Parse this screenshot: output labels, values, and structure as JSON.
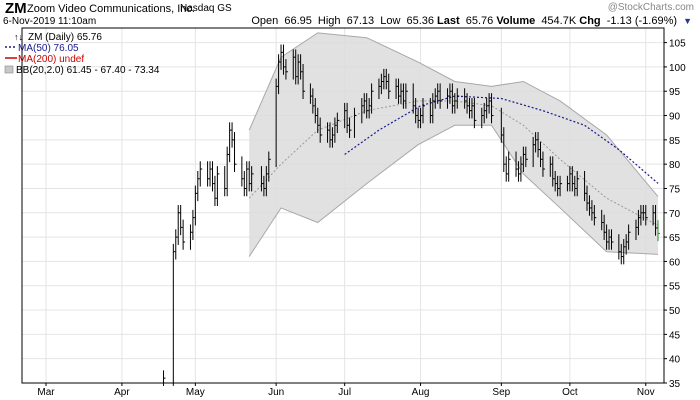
{
  "header": {
    "symbol": "ZM",
    "company": "Zoom Video Communications, Inc.",
    "exchange": "Nasdaq GS",
    "datetime": "6-Nov-2019 11:10am",
    "watermark": "@StockCharts.com"
  },
  "quote": {
    "open_label": "Open",
    "open": "66.95",
    "high_label": "High",
    "high": "67.13",
    "low_label": "Low",
    "low": "65.36",
    "last_label": "Last",
    "last": "65.76",
    "volume_label": "Volume",
    "volume": "454.7K",
    "chg_label": "Chg",
    "chg": "-1.13 (-1.69%)"
  },
  "legend": {
    "price": "ZM (Daily) 65.76",
    "ma50": "MA(50) 76.05",
    "ma200": "MA(200) undef",
    "bb": "BB(20,2.0) 61.45 - 67.40 - 73.34"
  },
  "colors": {
    "price": "#000000",
    "ma50": "#1a1a8c",
    "ma200": "#cc0000",
    "bb_fill": "#dcdcdc",
    "bb_edge": "#a8a8a8",
    "bb_mid": "#9a9a9a",
    "grid": "#e4e4e4"
  },
  "chart_data": {
    "type": "line",
    "title": "ZM (Daily)",
    "xlabel": "",
    "ylabel": "",
    "ylim": [
      35,
      108
    ],
    "yticks": [
      35,
      40,
      45,
      50,
      55,
      60,
      65,
      70,
      75,
      80,
      85,
      90,
      95,
      100,
      105
    ],
    "x_start": "2019-02-20",
    "x_end": "2019-11-06",
    "month_labels": [
      {
        "label": "Mar",
        "date": "2019-03-01"
      },
      {
        "label": "Apr",
        "date": "2019-04-01"
      },
      {
        "label": "May",
        "date": "2019-05-01"
      },
      {
        "label": "Jun",
        "date": "2019-06-03"
      },
      {
        "label": "Jul",
        "date": "2019-07-01"
      },
      {
        "label": "Aug",
        "date": "2019-08-01"
      },
      {
        "label": "Sep",
        "date": "2019-09-03"
      },
      {
        "label": "Oct",
        "date": "2019-10-01"
      },
      {
        "label": "Nov",
        "date": "2019-11-01"
      }
    ],
    "grid": true,
    "legend_position": "top-left",
    "price_series": [
      {
        "date": "2019-04-18",
        "value": 36.0
      },
      {
        "date": "2019-04-22",
        "value": 62
      },
      {
        "date": "2019-04-23",
        "value": 65
      },
      {
        "date": "2019-04-24",
        "value": 70
      },
      {
        "date": "2019-04-25",
        "value": 67
      },
      {
        "date": "2019-04-26",
        "value": 64
      },
      {
        "date": "2019-04-29",
        "value": 66
      },
      {
        "date": "2019-04-30",
        "value": 69
      },
      {
        "date": "2019-05-01",
        "value": 74
      },
      {
        "date": "2019-05-02",
        "value": 77
      },
      {
        "date": "2019-05-03",
        "value": 79
      },
      {
        "date": "2019-05-06",
        "value": 77
      },
      {
        "date": "2019-05-07",
        "value": 79
      },
      {
        "date": "2019-05-08",
        "value": 76
      },
      {
        "date": "2019-05-09",
        "value": 73
      },
      {
        "date": "2019-05-10",
        "value": 78
      },
      {
        "date": "2019-05-13",
        "value": 75
      },
      {
        "date": "2019-05-14",
        "value": 82
      },
      {
        "date": "2019-05-15",
        "value": 87
      },
      {
        "date": "2019-05-16",
        "value": 85
      },
      {
        "date": "2019-05-17",
        "value": 80
      },
      {
        "date": "2019-05-20",
        "value": 77
      },
      {
        "date": "2019-05-21",
        "value": 75
      },
      {
        "date": "2019-05-22",
        "value": 79
      },
      {
        "date": "2019-05-23",
        "value": 76
      },
      {
        "date": "2019-05-24",
        "value": 78
      },
      {
        "date": "2019-05-28",
        "value": 76
      },
      {
        "date": "2019-05-29",
        "value": 75
      },
      {
        "date": "2019-05-30",
        "value": 78
      },
      {
        "date": "2019-05-31",
        "value": 81
      },
      {
        "date": "2019-06-03",
        "value": 96
      },
      {
        "date": "2019-06-04",
        "value": 101
      },
      {
        "date": "2019-06-05",
        "value": 103
      },
      {
        "date": "2019-06-06",
        "value": 100
      },
      {
        "date": "2019-06-07",
        "value": 99
      },
      {
        "date": "2019-06-10",
        "value": 102
      },
      {
        "date": "2019-06-11",
        "value": 98
      },
      {
        "date": "2019-06-12",
        "value": 101
      },
      {
        "date": "2019-06-13",
        "value": 99
      },
      {
        "date": "2019-06-14",
        "value": 95
      },
      {
        "date": "2019-06-17",
        "value": 94
      },
      {
        "date": "2019-06-18",
        "value": 92
      },
      {
        "date": "2019-06-19",
        "value": 90
      },
      {
        "date": "2019-06-20",
        "value": 88
      },
      {
        "date": "2019-06-21",
        "value": 86
      },
      {
        "date": "2019-06-24",
        "value": 87
      },
      {
        "date": "2019-06-25",
        "value": 85
      },
      {
        "date": "2019-06-26",
        "value": 86
      },
      {
        "date": "2019-06-27",
        "value": 88
      },
      {
        "date": "2019-06-28",
        "value": 89
      },
      {
        "date": "2019-07-01",
        "value": 91
      },
      {
        "date": "2019-07-02",
        "value": 88
      },
      {
        "date": "2019-07-03",
        "value": 87
      },
      {
        "date": "2019-07-05",
        "value": 90
      },
      {
        "date": "2019-07-08",
        "value": 92
      },
      {
        "date": "2019-07-09",
        "value": 93
      },
      {
        "date": "2019-07-10",
        "value": 91
      },
      {
        "date": "2019-07-11",
        "value": 92
      },
      {
        "date": "2019-07-12",
        "value": 95
      },
      {
        "date": "2019-07-15",
        "value": 96
      },
      {
        "date": "2019-07-16",
        "value": 97
      },
      {
        "date": "2019-07-17",
        "value": 98
      },
      {
        "date": "2019-07-18",
        "value": 97
      },
      {
        "date": "2019-07-19",
        "value": 95
      },
      {
        "date": "2019-07-22",
        "value": 96
      },
      {
        "date": "2019-07-23",
        "value": 94
      },
      {
        "date": "2019-07-24",
        "value": 95
      },
      {
        "date": "2019-07-25",
        "value": 93
      },
      {
        "date": "2019-07-26",
        "value": 95
      },
      {
        "date": "2019-07-29",
        "value": 92
      },
      {
        "date": "2019-07-30",
        "value": 90
      },
      {
        "date": "2019-07-31",
        "value": 89
      },
      {
        "date": "2019-08-01",
        "value": 90
      },
      {
        "date": "2019-08-02",
        "value": 92
      },
      {
        "date": "2019-08-05",
        "value": 90
      },
      {
        "date": "2019-08-06",
        "value": 93
      },
      {
        "date": "2019-08-07",
        "value": 94
      },
      {
        "date": "2019-08-08",
        "value": 95
      },
      {
        "date": "2019-08-09",
        "value": 93
      },
      {
        "date": "2019-08-12",
        "value": 94
      },
      {
        "date": "2019-08-13",
        "value": 95
      },
      {
        "date": "2019-08-14",
        "value": 92
      },
      {
        "date": "2019-08-15",
        "value": 93
      },
      {
        "date": "2019-08-16",
        "value": 94
      },
      {
        "date": "2019-08-19",
        "value": 93
      },
      {
        "date": "2019-08-20",
        "value": 92
      },
      {
        "date": "2019-08-21",
        "value": 91
      },
      {
        "date": "2019-08-22",
        "value": 92
      },
      {
        "date": "2019-08-23",
        "value": 89
      },
      {
        "date": "2019-08-26",
        "value": 90
      },
      {
        "date": "2019-08-27",
        "value": 91
      },
      {
        "date": "2019-08-28",
        "value": 92
      },
      {
        "date": "2019-08-29",
        "value": 93
      },
      {
        "date": "2019-08-30",
        "value": 90
      },
      {
        "date": "2019-09-03",
        "value": 86
      },
      {
        "date": "2019-09-04",
        "value": 80
      },
      {
        "date": "2019-09-05",
        "value": 78
      },
      {
        "date": "2019-09-06",
        "value": 81
      },
      {
        "date": "2019-09-09",
        "value": 79
      },
      {
        "date": "2019-09-10",
        "value": 78
      },
      {
        "date": "2019-09-11",
        "value": 80
      },
      {
        "date": "2019-09-12",
        "value": 82
      },
      {
        "date": "2019-09-13",
        "value": 81
      },
      {
        "date": "2019-09-16",
        "value": 84
      },
      {
        "date": "2019-09-17",
        "value": 85
      },
      {
        "date": "2019-09-18",
        "value": 83
      },
      {
        "date": "2019-09-19",
        "value": 81
      },
      {
        "date": "2019-09-20",
        "value": 79
      },
      {
        "date": "2019-09-23",
        "value": 80
      },
      {
        "date": "2019-09-24",
        "value": 77
      },
      {
        "date": "2019-09-25",
        "value": 76
      },
      {
        "date": "2019-09-26",
        "value": 75
      },
      {
        "date": "2019-09-27",
        "value": 76
      },
      {
        "date": "2019-09-30",
        "value": 76
      },
      {
        "date": "2019-10-01",
        "value": 78
      },
      {
        "date": "2019-10-02",
        "value": 76
      },
      {
        "date": "2019-10-03",
        "value": 75
      },
      {
        "date": "2019-10-04",
        "value": 77
      },
      {
        "date": "2019-10-07",
        "value": 74
      },
      {
        "date": "2019-10-08",
        "value": 72
      },
      {
        "date": "2019-10-09",
        "value": 71
      },
      {
        "date": "2019-10-10",
        "value": 70
      },
      {
        "date": "2019-10-11",
        "value": 69
      },
      {
        "date": "2019-10-14",
        "value": 68
      },
      {
        "date": "2019-10-15",
        "value": 66
      },
      {
        "date": "2019-10-16",
        "value": 64
      },
      {
        "date": "2019-10-17",
        "value": 65
      },
      {
        "date": "2019-10-18",
        "value": 64
      },
      {
        "date": "2019-10-21",
        "value": 62
      },
      {
        "date": "2019-10-22",
        "value": 61
      },
      {
        "date": "2019-10-23",
        "value": 63
      },
      {
        "date": "2019-10-24",
        "value": 64
      },
      {
        "date": "2019-10-25",
        "value": 66
      },
      {
        "date": "2019-10-28",
        "value": 67
      },
      {
        "date": "2019-10-29",
        "value": 69
      },
      {
        "date": "2019-10-30",
        "value": 70
      },
      {
        "date": "2019-10-31",
        "value": 70
      },
      {
        "date": "2019-11-01",
        "value": 69
      },
      {
        "date": "2019-11-04",
        "value": 70
      },
      {
        "date": "2019-11-05",
        "value": 66.89
      },
      {
        "date": "2019-11-06",
        "value": 65.76
      }
    ],
    "bb_upper": [
      {
        "date": "2019-05-23",
        "value": 87
      },
      {
        "date": "2019-06-05",
        "value": 102
      },
      {
        "date": "2019-06-20",
        "value": 107
      },
      {
        "date": "2019-07-10",
        "value": 106
      },
      {
        "date": "2019-07-31",
        "value": 101
      },
      {
        "date": "2019-08-15",
        "value": 97
      },
      {
        "date": "2019-08-30",
        "value": 96
      },
      {
        "date": "2019-09-12",
        "value": 97
      },
      {
        "date": "2019-09-27",
        "value": 93
      },
      {
        "date": "2019-10-16",
        "value": 86
      },
      {
        "date": "2019-11-06",
        "value": 73.34
      }
    ],
    "bb_middle": [
      {
        "date": "2019-05-23",
        "value": 73
      },
      {
        "date": "2019-06-05",
        "value": 80
      },
      {
        "date": "2019-06-20",
        "value": 87
      },
      {
        "date": "2019-07-10",
        "value": 91
      },
      {
        "date": "2019-07-31",
        "value": 93
      },
      {
        "date": "2019-08-15",
        "value": 93
      },
      {
        "date": "2019-08-30",
        "value": 92
      },
      {
        "date": "2019-09-12",
        "value": 88
      },
      {
        "date": "2019-09-27",
        "value": 81
      },
      {
        "date": "2019-10-16",
        "value": 73
      },
      {
        "date": "2019-11-06",
        "value": 67.4
      }
    ],
    "bb_lower": [
      {
        "date": "2019-05-23",
        "value": 61
      },
      {
        "date": "2019-06-05",
        "value": 71
      },
      {
        "date": "2019-06-20",
        "value": 68
      },
      {
        "date": "2019-07-10",
        "value": 76
      },
      {
        "date": "2019-07-31",
        "value": 84
      },
      {
        "date": "2019-08-15",
        "value": 88
      },
      {
        "date": "2019-08-30",
        "value": 88
      },
      {
        "date": "2019-09-12",
        "value": 78
      },
      {
        "date": "2019-09-27",
        "value": 71
      },
      {
        "date": "2019-10-16",
        "value": 62
      },
      {
        "date": "2019-11-06",
        "value": 61.45
      }
    ],
    "ma50_series": [
      {
        "date": "2019-07-01",
        "value": 82
      },
      {
        "date": "2019-07-15",
        "value": 87
      },
      {
        "date": "2019-08-01",
        "value": 92
      },
      {
        "date": "2019-08-15",
        "value": 94
      },
      {
        "date": "2019-09-03",
        "value": 93.5
      },
      {
        "date": "2019-09-20",
        "value": 91
      },
      {
        "date": "2019-10-07",
        "value": 88
      },
      {
        "date": "2019-10-21",
        "value": 83
      },
      {
        "date": "2019-11-06",
        "value": 76.05
      }
    ]
  }
}
